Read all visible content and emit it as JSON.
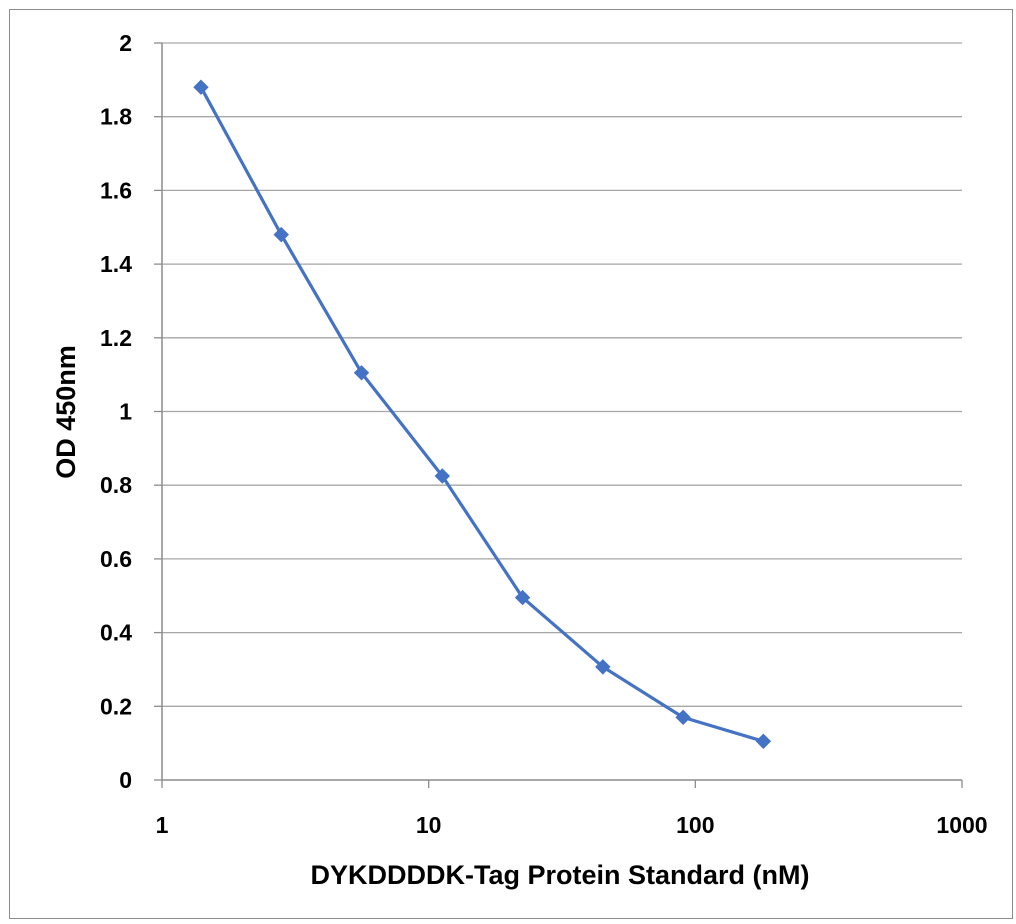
{
  "chart_data": {
    "type": "line",
    "title": "",
    "xlabel": "DYKDDDDK-Tag Protein Standard (nM)",
    "ylabel": "OD 450nm",
    "x_scale": "log",
    "xlim": [
      1,
      1000
    ],
    "ylim": [
      0,
      2
    ],
    "x_ticks": [
      "1",
      "10",
      "100",
      "1000"
    ],
    "y_ticks": [
      "0",
      "0.2",
      "0.4",
      "0.6",
      "0.8",
      "1",
      "1.2",
      "1.4",
      "1.6",
      "1.8",
      "2"
    ],
    "grid": "horizontal major gridlines",
    "legend": "none",
    "series": [
      {
        "x": [
          1.4,
          2.8,
          5.6,
          11.25,
          22.5,
          45,
          90,
          180
        ],
        "y": [
          1.88,
          1.48,
          1.105,
          0.825,
          0.495,
          0.307,
          0.17,
          0.105
        ],
        "color": "#4472c4",
        "marker": "diamond"
      }
    ]
  },
  "colors": {
    "series": "#4472c4",
    "gridline": "#a6a6a6",
    "axis": "#8c8c8c",
    "frame": "#8c8c8c"
  }
}
